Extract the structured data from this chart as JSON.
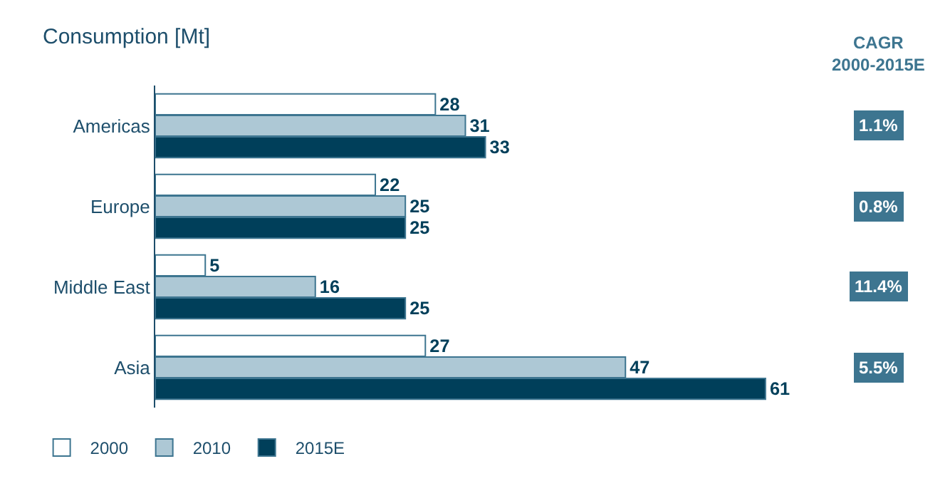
{
  "chart_data": {
    "type": "bar",
    "orientation": "horizontal",
    "title": "Consumption [Mt]",
    "categories": [
      "Americas",
      "Europe",
      "Middle East",
      "Asia"
    ],
    "series": [
      {
        "name": "2000",
        "color": "#ffffff",
        "values": [
          28,
          22,
          5,
          27
        ]
      },
      {
        "name": "2010",
        "color": "#adc8d5",
        "values": [
          31,
          25,
          16,
          47
        ]
      },
      {
        "name": "2015E",
        "color": "#003f5a",
        "values": [
          33,
          25,
          25,
          61
        ]
      }
    ],
    "data_labels": true,
    "legend": "bottom left",
    "annotations": [
      "CAGR\n2000-2015E",
      "1.1%",
      "0.8%",
      "11.4%",
      "5.5%"
    ]
  }
}
